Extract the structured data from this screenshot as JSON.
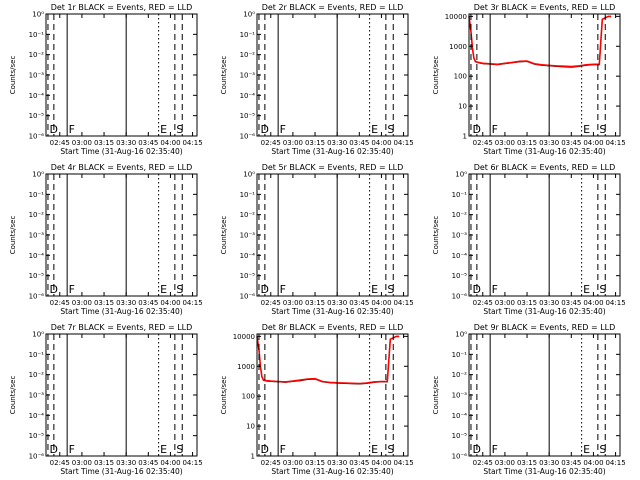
{
  "figure": {
    "panel_count": 9,
    "event_marker_labels": [
      "D",
      "F",
      "E",
      "S"
    ],
    "colors": {
      "events": "#000000",
      "lld": "#ff0000",
      "background": "#ffffff"
    }
  },
  "chart_data": [
    {
      "type": "line",
      "title": "Det 1r BLACK = Events, RED = LLD",
      "xlabel": "Start Time (31-Aug-16 02:35:40)",
      "ylabel": "Counts/sec",
      "y_scale": "log",
      "xlim": [
        "02:35:40",
        "04:18:00"
      ],
      "x_ticks": [
        "02:45",
        "03:00",
        "03:15",
        "03:30",
        "03:45",
        "04:00",
        "04:15"
      ],
      "y_ticks": [
        "10⁰",
        "10⁻¹",
        "10⁻²",
        "10⁻³",
        "10⁻⁴",
        "10⁻⁵",
        "10⁻⁶"
      ],
      "ylim": [
        1e-06,
        1
      ],
      "series": [],
      "annotations": [
        {
          "label": "D",
          "time": "02:37",
          "style": "dashed"
        },
        {
          "label": "",
          "time": "02:41",
          "style": "dashed"
        },
        {
          "label": "F",
          "time": "02:50",
          "style": "solid"
        },
        {
          "label": "",
          "time": "03:30",
          "style": "solid"
        },
        {
          "label": "E",
          "time": "03:52",
          "style": "dotted"
        },
        {
          "label": "S",
          "time": "04:03",
          "style": "dashed"
        },
        {
          "label": "",
          "time": "04:08",
          "style": "dashed"
        }
      ]
    },
    {
      "type": "line",
      "title": "Det 2r BLACK = Events, RED = LLD",
      "xlabel": "Start Time (31-Aug-16 02:35:40)",
      "ylabel": "Counts/sec",
      "y_scale": "log",
      "xlim": [
        "02:35:40",
        "04:18:00"
      ],
      "x_ticks": [
        "02:45",
        "03:00",
        "03:15",
        "03:30",
        "03:45",
        "04:00",
        "04:15"
      ],
      "y_ticks": [
        "10⁰",
        "10⁻¹",
        "10⁻²",
        "10⁻³",
        "10⁻⁴",
        "10⁻⁵",
        "10⁻⁶"
      ],
      "ylim": [
        1e-06,
        1
      ],
      "series": [],
      "annotations": [
        {
          "label": "D",
          "time": "02:37",
          "style": "dashed"
        },
        {
          "label": "",
          "time": "02:41",
          "style": "dashed"
        },
        {
          "label": "F",
          "time": "02:50",
          "style": "solid"
        },
        {
          "label": "",
          "time": "03:30",
          "style": "solid"
        },
        {
          "label": "E",
          "time": "03:52",
          "style": "dotted"
        },
        {
          "label": "S",
          "time": "04:03",
          "style": "dashed"
        },
        {
          "label": "",
          "time": "04:08",
          "style": "dashed"
        }
      ]
    },
    {
      "type": "line",
      "title": "Det 3r BLACK = Events, RED = LLD",
      "xlabel": "Start Time (31-Aug-16 02:35:40)",
      "ylabel": "Counts/sec",
      "y_scale": "log",
      "xlim": [
        "02:35:40",
        "04:18:00"
      ],
      "x_ticks": [
        "02:45",
        "03:00",
        "03:15",
        "03:30",
        "03:45",
        "04:00",
        "04:15"
      ],
      "y_ticks": [
        "1",
        "10",
        "100",
        "1000",
        "10000"
      ],
      "ylim": [
        1,
        12000
      ],
      "series": [
        {
          "role": "events",
          "color": "#000000",
          "x": [
            "02:35:40",
            "02:37",
            "02:38",
            "02:39",
            "02:40",
            "02:42",
            "02:45",
            "02:50",
            "02:55",
            "03:00",
            "03:05",
            "03:10",
            "03:15",
            "03:20",
            "03:25",
            "03:30",
            "03:35",
            "03:40",
            "03:45",
            "03:50",
            "03:55",
            "04:00",
            "04:04",
            "04:06",
            "04:10",
            "04:12"
          ],
          "y": [
            10000,
            3000,
            900,
            400,
            300,
            280,
            260,
            250,
            240,
            260,
            280,
            300,
            310,
            250,
            230,
            220,
            210,
            205,
            200,
            210,
            230,
            240,
            240,
            8000,
            10000,
            10000
          ]
        },
        {
          "role": "lld",
          "color": "#ff0000",
          "x": [
            "02:35:40",
            "02:37",
            "02:38",
            "02:39",
            "02:40",
            "02:42",
            "02:45",
            "02:50",
            "02:55",
            "03:00",
            "03:05",
            "03:10",
            "03:15",
            "03:20",
            "03:25",
            "03:30",
            "03:35",
            "03:40",
            "03:45",
            "03:50",
            "03:55",
            "04:00",
            "04:04",
            "04:06",
            "04:10",
            "04:12"
          ],
          "y": [
            10000,
            3000,
            900,
            400,
            310,
            290,
            270,
            260,
            250,
            270,
            290,
            315,
            320,
            260,
            240,
            230,
            220,
            215,
            210,
            220,
            240,
            250,
            250,
            8000,
            10000,
            10000
          ]
        }
      ],
      "annotations": [
        {
          "label": "D",
          "time": "02:37",
          "style": "dashed"
        },
        {
          "label": "",
          "time": "02:41",
          "style": "dashed"
        },
        {
          "label": "F",
          "time": "02:50",
          "style": "solid"
        },
        {
          "label": "",
          "time": "03:30",
          "style": "solid"
        },
        {
          "label": "E",
          "time": "03:52",
          "style": "dotted"
        },
        {
          "label": "S",
          "time": "04:03",
          "style": "dashed"
        },
        {
          "label": "",
          "time": "04:08",
          "style": "dashed"
        }
      ]
    },
    {
      "type": "line",
      "title": "Det 4r BLACK = Events, RED = LLD",
      "xlabel": "Start Time (31-Aug-16 02:35:40)",
      "ylabel": "Counts/sec",
      "y_scale": "log",
      "xlim": [
        "02:35:40",
        "04:18:00"
      ],
      "x_ticks": [
        "02:45",
        "03:00",
        "03:15",
        "03:30",
        "03:45",
        "04:00",
        "04:15"
      ],
      "y_ticks": [
        "10⁰",
        "10⁻¹",
        "10⁻²",
        "10⁻³",
        "10⁻⁴",
        "10⁻⁵",
        "10⁻⁶"
      ],
      "ylim": [
        1e-06,
        1
      ],
      "series": [],
      "annotations": [
        {
          "label": "D",
          "time": "02:37",
          "style": "dashed"
        },
        {
          "label": "",
          "time": "02:41",
          "style": "dashed"
        },
        {
          "label": "F",
          "time": "02:50",
          "style": "solid"
        },
        {
          "label": "",
          "time": "03:30",
          "style": "solid"
        },
        {
          "label": "E",
          "time": "03:52",
          "style": "dotted"
        },
        {
          "label": "S",
          "time": "04:03",
          "style": "dashed"
        },
        {
          "label": "",
          "time": "04:08",
          "style": "dashed"
        }
      ]
    },
    {
      "type": "line",
      "title": "Det 5r BLACK = Events, RED = LLD",
      "xlabel": "Start Time (31-Aug-16 02:35:40)",
      "ylabel": "Counts/sec",
      "y_scale": "log",
      "xlim": [
        "02:35:40",
        "04:18:00"
      ],
      "x_ticks": [
        "02:45",
        "03:00",
        "03:15",
        "03:30",
        "03:45",
        "04:00",
        "04:15"
      ],
      "y_ticks": [
        "10⁰",
        "10⁻¹",
        "10⁻²",
        "10⁻³",
        "10⁻⁴",
        "10⁻⁵",
        "10⁻⁶"
      ],
      "ylim": [
        1e-06,
        1
      ],
      "series": [],
      "annotations": [
        {
          "label": "D",
          "time": "02:37",
          "style": "dashed"
        },
        {
          "label": "",
          "time": "02:41",
          "style": "dashed"
        },
        {
          "label": "F",
          "time": "02:50",
          "style": "solid"
        },
        {
          "label": "",
          "time": "03:30",
          "style": "solid"
        },
        {
          "label": "E",
          "time": "03:52",
          "style": "dotted"
        },
        {
          "label": "S",
          "time": "04:03",
          "style": "dashed"
        },
        {
          "label": "",
          "time": "04:08",
          "style": "dashed"
        }
      ]
    },
    {
      "type": "line",
      "title": "Det 6r BLACK = Events, RED = LLD",
      "xlabel": "Start Time (31-Aug-16 02:35:40)",
      "ylabel": "Counts/sec",
      "y_scale": "log",
      "xlim": [
        "02:35:40",
        "04:18:00"
      ],
      "x_ticks": [
        "02:45",
        "03:00",
        "03:15",
        "03:30",
        "03:45",
        "04:00",
        "04:15"
      ],
      "y_ticks": [
        "10⁰",
        "10⁻¹",
        "10⁻²",
        "10⁻³",
        "10⁻⁴",
        "10⁻⁵",
        "10⁻⁶"
      ],
      "ylim": [
        1e-06,
        1
      ],
      "series": [],
      "annotations": [
        {
          "label": "D",
          "time": "02:37",
          "style": "dashed"
        },
        {
          "label": "",
          "time": "02:41",
          "style": "dashed"
        },
        {
          "label": "F",
          "time": "02:50",
          "style": "solid"
        },
        {
          "label": "",
          "time": "03:30",
          "style": "solid"
        },
        {
          "label": "E",
          "time": "03:52",
          "style": "dotted"
        },
        {
          "label": "S",
          "time": "04:03",
          "style": "dashed"
        },
        {
          "label": "",
          "time": "04:08",
          "style": "dashed"
        }
      ]
    },
    {
      "type": "line",
      "title": "Det 7r BLACK = Events, RED = LLD",
      "xlabel": "Start Time (31-Aug-16 02:35:40)",
      "ylabel": "Counts/sec",
      "y_scale": "log",
      "xlim": [
        "02:35:40",
        "04:18:00"
      ],
      "x_ticks": [
        "02:45",
        "03:00",
        "03:15",
        "03:30",
        "03:45",
        "04:00",
        "04:15"
      ],
      "y_ticks": [
        "10⁰",
        "10⁻¹",
        "10⁻²",
        "10⁻³",
        "10⁻⁴",
        "10⁻⁵",
        "10⁻⁶"
      ],
      "ylim": [
        1e-06,
        1
      ],
      "series": [],
      "annotations": [
        {
          "label": "D",
          "time": "02:37",
          "style": "dashed"
        },
        {
          "label": "",
          "time": "02:41",
          "style": "dashed"
        },
        {
          "label": "F",
          "time": "02:50",
          "style": "solid"
        },
        {
          "label": "",
          "time": "03:30",
          "style": "solid"
        },
        {
          "label": "E",
          "time": "03:52",
          "style": "dotted"
        },
        {
          "label": "S",
          "time": "04:03",
          "style": "dashed"
        },
        {
          "label": "",
          "time": "04:08",
          "style": "dashed"
        }
      ]
    },
    {
      "type": "line",
      "title": "Det 8r BLACK = Events, RED = LLD",
      "xlabel": "Start Time (31-Aug-16 02:35:40)",
      "ylabel": "Counts/sec",
      "y_scale": "log",
      "xlim": [
        "02:35:40",
        "04:18:00"
      ],
      "x_ticks": [
        "02:45",
        "03:00",
        "03:15",
        "03:30",
        "03:45",
        "04:00",
        "04:15"
      ],
      "y_ticks": [
        "1",
        "10",
        "100",
        "1000",
        "10000"
      ],
      "ylim": [
        1,
        12000
      ],
      "series": [
        {
          "role": "events",
          "color": "#000000",
          "x": [
            "02:35:40",
            "02:37",
            "02:38",
            "02:39",
            "02:40",
            "02:42",
            "02:45",
            "02:50",
            "02:55",
            "03:00",
            "03:05",
            "03:10",
            "03:15",
            "03:20",
            "03:25",
            "03:30",
            "03:35",
            "03:40",
            "03:45",
            "03:50",
            "03:55",
            "04:00",
            "04:04",
            "04:06",
            "04:10",
            "04:12"
          ],
          "y": [
            10000,
            3500,
            1000,
            450,
            340,
            320,
            310,
            300,
            290,
            310,
            330,
            360,
            370,
            300,
            280,
            270,
            265,
            260,
            255,
            265,
            290,
            300,
            300,
            8000,
            10000,
            10000
          ]
        },
        {
          "role": "lld",
          "color": "#ff0000",
          "x": [
            "02:35:40",
            "02:37",
            "02:38",
            "02:39",
            "02:40",
            "02:42",
            "02:45",
            "02:50",
            "02:55",
            "03:00",
            "03:05",
            "03:10",
            "03:15",
            "03:20",
            "03:25",
            "03:30",
            "03:35",
            "03:40",
            "03:45",
            "03:50",
            "03:55",
            "04:00",
            "04:04",
            "04:06",
            "04:10",
            "04:12"
          ],
          "y": [
            10000,
            3500,
            1000,
            450,
            350,
            330,
            320,
            310,
            300,
            320,
            345,
            375,
            385,
            310,
            290,
            280,
            275,
            270,
            265,
            275,
            300,
            310,
            310,
            8000,
            10000,
            10000
          ]
        }
      ],
      "annotations": [
        {
          "label": "D",
          "time": "02:37",
          "style": "dashed"
        },
        {
          "label": "",
          "time": "02:41",
          "style": "dashed"
        },
        {
          "label": "F",
          "time": "02:50",
          "style": "solid"
        },
        {
          "label": "",
          "time": "03:30",
          "style": "solid"
        },
        {
          "label": "E",
          "time": "03:52",
          "style": "dotted"
        },
        {
          "label": "S",
          "time": "04:03",
          "style": "dashed"
        },
        {
          "label": "",
          "time": "04:08",
          "style": "dashed"
        }
      ]
    },
    {
      "type": "line",
      "title": "Det 9r BLACK = Events, RED = LLD",
      "xlabel": "Start Time (31-Aug-16 02:35:40)",
      "ylabel": "Counts/sec",
      "y_scale": "log",
      "xlim": [
        "02:35:40",
        "04:18:00"
      ],
      "x_ticks": [
        "02:45",
        "03:00",
        "03:15",
        "03:30",
        "03:45",
        "04:00",
        "04:15"
      ],
      "y_ticks": [
        "10⁰",
        "10⁻¹",
        "10⁻²",
        "10⁻³",
        "10⁻⁴",
        "10⁻⁵",
        "10⁻⁶"
      ],
      "ylim": [
        1e-06,
        1
      ],
      "series": [],
      "annotations": [
        {
          "label": "D",
          "time": "02:37",
          "style": "dashed"
        },
        {
          "label": "",
          "time": "02:41",
          "style": "dashed"
        },
        {
          "label": "F",
          "time": "02:50",
          "style": "solid"
        },
        {
          "label": "",
          "time": "03:30",
          "style": "solid"
        },
        {
          "label": "E",
          "time": "03:52",
          "style": "dotted"
        },
        {
          "label": "S",
          "time": "04:03",
          "style": "dashed"
        },
        {
          "label": "",
          "time": "04:08",
          "style": "dashed"
        }
      ]
    }
  ]
}
